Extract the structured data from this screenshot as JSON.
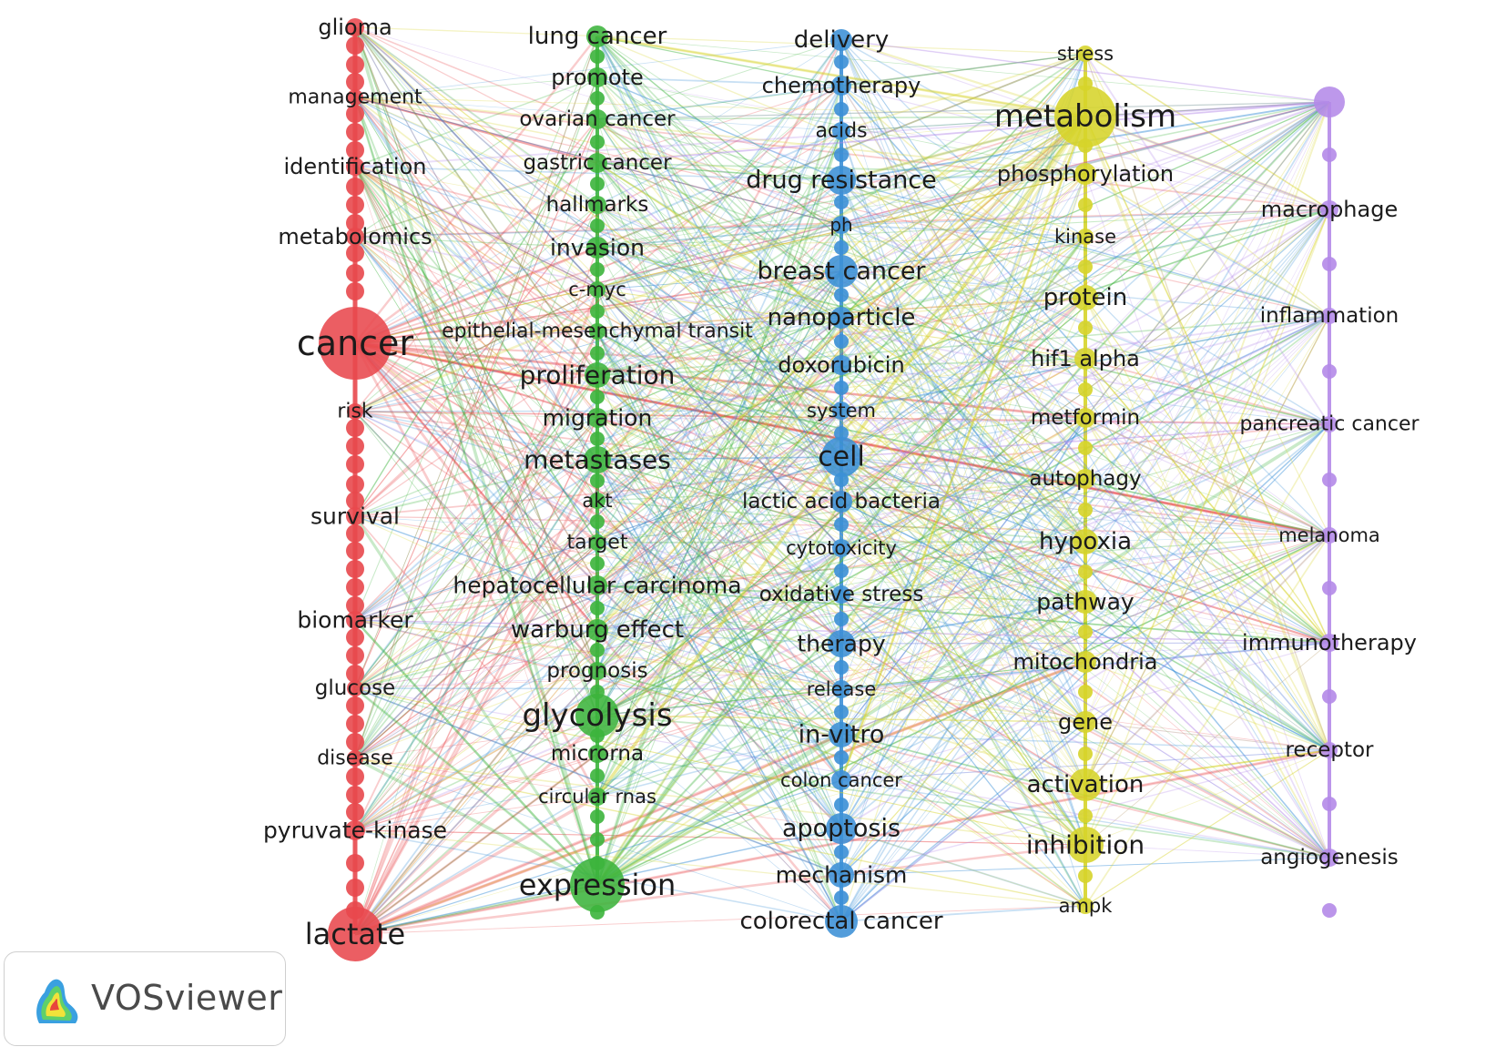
{
  "app": {
    "name": "VOSviewer"
  },
  "colors": {
    "cluster1": "#e8484d",
    "cluster2": "#3cb43c",
    "cluster3": "#3b8fd6",
    "cluster4": "#d6d42a",
    "cluster5": "#b48ae8"
  },
  "clusters": [
    {
      "id": "cluster1",
      "keywords": [
        "glioma",
        "management",
        "identification",
        "metabolomics",
        "cancer",
        "risk",
        "survival",
        "biomarker",
        "glucose",
        "disease",
        "pyruvate-kinase",
        "lactate"
      ]
    },
    {
      "id": "cluster2",
      "keywords": [
        "lung cancer",
        "promote",
        "ovarian cancer",
        "gastric cancer",
        "hallmarks",
        "invasion",
        "c-myc",
        "epithelial-mesenchymal transit",
        "proliferation",
        "migration",
        "metastases",
        "akt",
        "target",
        "hepatocellular carcinoma",
        "warburg effect",
        "prognosis",
        "glycolysis",
        "microrna",
        "circular rnas",
        "expression"
      ]
    },
    {
      "id": "cluster3",
      "keywords": [
        "delivery",
        "chemotherapy",
        "acids",
        "drug resistance",
        "ph",
        "breast cancer",
        "nanoparticle",
        "doxorubicin",
        "system",
        "cell",
        "lactic acid bacteria",
        "cytotoxicity",
        "oxidative stress",
        "therapy",
        "release",
        "in-vitro",
        "colon cancer",
        "apoptosis",
        "mechanism",
        "colorectal cancer"
      ]
    },
    {
      "id": "cluster4",
      "keywords": [
        "stress",
        "metabolism",
        "phosphorylation",
        "kinase",
        "protein",
        "hif1 alpha",
        "metformin",
        "autophagy",
        "hypoxia",
        "pathway",
        "mitochondria",
        "gene",
        "activation",
        "inhibition",
        "ampk"
      ]
    },
    {
      "id": "cluster5",
      "keywords": [
        "macrophage",
        "inflammation",
        "pancreatic cancer",
        "melanoma",
        "immunotherapy",
        "receptor",
        "angiogenesis"
      ]
    }
  ]
}
